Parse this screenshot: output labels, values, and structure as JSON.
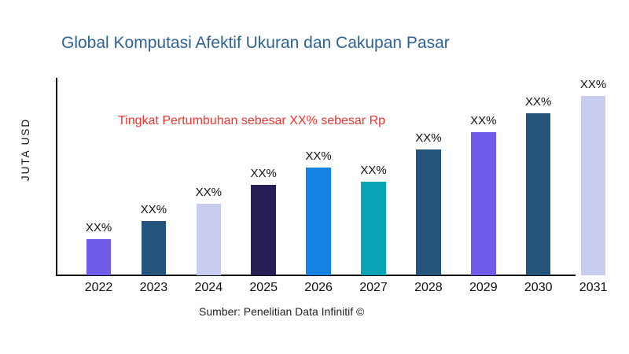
{
  "header": {
    "title": "Global Komputasi Afektif Ukuran dan Cakupan Pasar",
    "title_color": "#2F6295"
  },
  "annotation": {
    "text": "Tingkat Pertumbuhan sebesar XX% sebesar Rp",
    "color": "#EE3530"
  },
  "axes": {
    "y_label": "JUTA USD",
    "axis_color": "#000000"
  },
  "footer": {
    "source": "Sumber: Penelitian Data Infinitif ©"
  },
  "chart_data": {
    "type": "bar",
    "title": "Global Komputasi Afektif Ukuran dan Cakupan Pasar",
    "xlabel": "",
    "ylabel": "JUTA USD",
    "categories": [
      "2022",
      "2023",
      "2024",
      "2025",
      "2026",
      "2027",
      "2028",
      "2029",
      "2030",
      "2031"
    ],
    "values": [
      46,
      69,
      91,
      115,
      137,
      119,
      160,
      182,
      206,
      228
    ],
    "value_labels": [
      "XX%",
      "XX%",
      "XX%",
      "XX%",
      "XX%",
      "XX%",
      "XX%",
      "XX%",
      "XX%",
      "XX%"
    ],
    "bar_colors": [
      "#6E5CE8",
      "#24537B",
      "#C8CDF0",
      "#261F55",
      "#1583E3",
      "#0AA3B6",
      "#24537B",
      "#6E5CE8",
      "#24537B",
      "#C8CDF0"
    ],
    "annotation": "Tingkat Pertumbuhan sebesar XX% sebesar Rp",
    "source": "Sumber: Penelitian Data Infinitif ©",
    "grid": false,
    "legend": false
  }
}
